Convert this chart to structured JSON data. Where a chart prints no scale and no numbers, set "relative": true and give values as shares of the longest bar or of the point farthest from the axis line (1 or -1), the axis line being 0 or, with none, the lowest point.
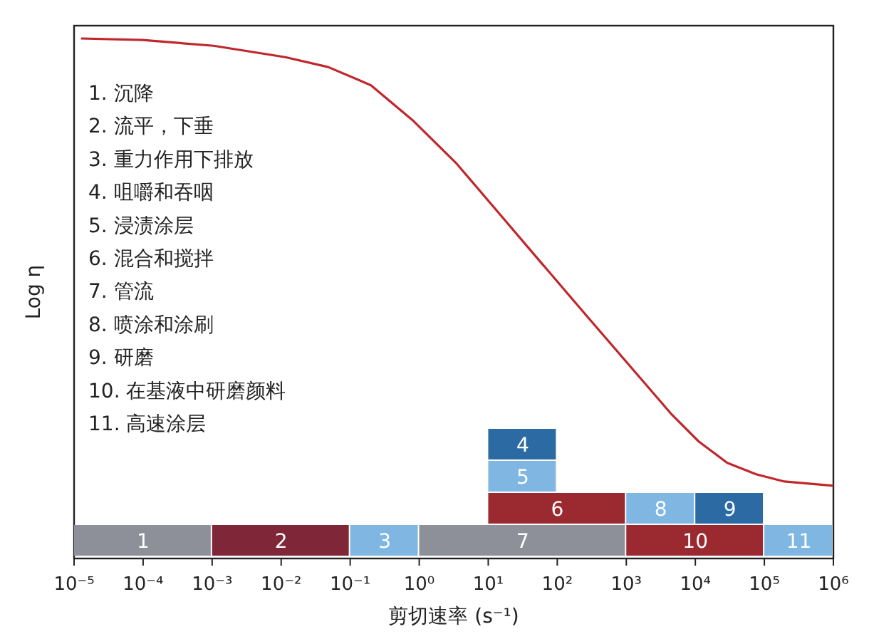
{
  "chart_data": {
    "type": "line",
    "relative": true,
    "log": "x",
    "xlim": [
      1e-05,
      1000000.0
    ],
    "ylabel": "Log η",
    "xlabel": "剪切速率 (s⁻¹)",
    "xticks": [
      {
        "value": 1e-05,
        "label": "10⁻⁵"
      },
      {
        "value": 0.0001,
        "label": "10⁻⁴"
      },
      {
        "value": 0.001,
        "label": "10⁻³"
      },
      {
        "value": 0.01,
        "label": "10⁻²"
      },
      {
        "value": 0.1,
        "label": "10⁻¹"
      },
      {
        "value": 1,
        "label": "10⁰"
      },
      {
        "value": 10,
        "label": "10¹"
      },
      {
        "value": 100,
        "label": "10²"
      },
      {
        "value": 1000,
        "label": "10³"
      },
      {
        "value": 10000,
        "label": "10⁴"
      },
      {
        "value": 100000,
        "label": "10⁵"
      },
      {
        "value": 1000000,
        "label": "10⁶"
      }
    ],
    "annotations": [
      "1. 沉降",
      "2. 流平，下垂",
      "3. 重力作用下排放",
      "4. 咀嚼和吞咽",
      "5. 浸渍涂层",
      "6. 混合和搅拌",
      "7. 管流",
      "8. 喷涂和涂刷",
      "9. 研磨",
      "10. 在基液中研磨颜料",
      "11. 高速涂层"
    ],
    "series": [
      {
        "color": "#c0272d",
        "x": [
          1.26e-05,
          9.8e-05,
          0.00105,
          0.0115,
          0.048,
          0.2,
          0.83,
          3.5,
          14.5,
          60,
          250,
          1050,
          4400,
          11200,
          29000,
          76000,
          195000,
          1000000.0
        ],
        "values": [
          1,
          0.997,
          0.986,
          0.964,
          0.945,
          0.91,
          0.841,
          0.759,
          0.663,
          0.567,
          0.471,
          0.375,
          0.279,
          0.225,
          0.184,
          0.162,
          0.148,
          0.14
        ]
      }
    ],
    "bands": [
      {
        "axis": "x",
        "from": 1e-05,
        "to": 0.001,
        "label": "1",
        "color": "#8e9099"
      },
      {
        "axis": "x",
        "from": 0.001,
        "to": 0.1,
        "label": "2",
        "color": "#7f2638"
      },
      {
        "axis": "x",
        "from": 0.1,
        "to": 1,
        "label": "3",
        "color": "#7fb6e2"
      },
      {
        "axis": "x",
        "from": 1,
        "to": 1000,
        "label": "7",
        "color": "#8e9099"
      },
      {
        "axis": "x",
        "from": 1000,
        "to": 100000,
        "label": "10",
        "color": "#9b2a30"
      },
      {
        "axis": "x",
        "from": 100000,
        "to": 1000000,
        "label": "11",
        "color": "#7fb6e2"
      },
      {
        "axis": "x",
        "from": 10,
        "to": 1000,
        "label": "6",
        "color": "#9b2a30"
      },
      {
        "axis": "x",
        "from": 1000,
        "to": 10000,
        "label": "8",
        "color": "#7fb6e2"
      },
      {
        "axis": "x",
        "from": 10000,
        "to": 100000,
        "label": "9",
        "color": "#2b6aa3"
      },
      {
        "axis": "x",
        "from": 10,
        "to": 100,
        "label": "5",
        "color": "#7fb6e2"
      },
      {
        "axis": "x",
        "from": 10,
        "to": 100,
        "label": "4",
        "color": "#2b6aa3"
      }
    ]
  }
}
